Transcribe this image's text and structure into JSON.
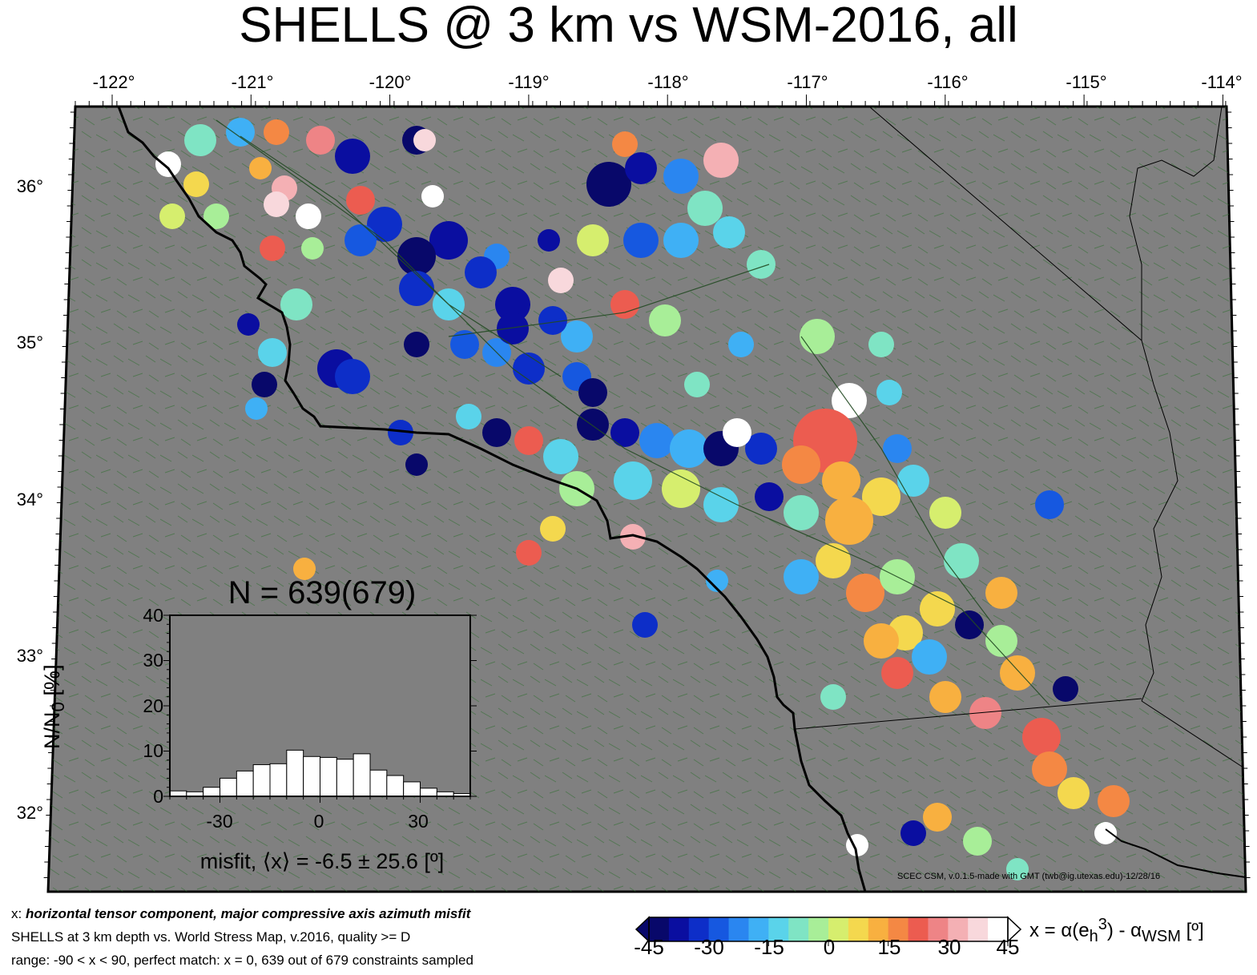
{
  "title": "SHELLS @ 3 km vs WSM-2016, all",
  "lon_labels": [
    "-122°",
    "-121°",
    "-120°",
    "-119°",
    "-118°",
    "-117°",
    "-116°",
    "-115°",
    "-114°"
  ],
  "lat_labels": [
    "36°",
    "35°",
    "34°",
    "33°",
    "32°"
  ],
  "credit": "SCEC CSM, v.0.1.5-made with GMT (twb@ig.utexas.edu)-12/28/16",
  "caption": {
    "line1_prefix": "x: ",
    "line1_emph": "horizontal tensor component, major compressive axis azimuth misfit",
    "line2": "SHELLS at 3 km depth vs.  World Stress Map, v.2016, quality >= D",
    "line3": "range: -90 < x < 90, perfect match: x = 0, 639 out of 679 constraints sampled"
  },
  "colorbar": {
    "labels": [
      "-45",
      "-30",
      "-15",
      "0",
      "15",
      "30",
      "45"
    ],
    "title": "x = α(e",
    "title_sup": "3",
    "title_sub": "h",
    "title_rest": ") - α",
    "title_sub2": "WSM",
    "title_unit": " [º]",
    "colors": [
      "#08086a",
      "#0a0ea0",
      "#0d2ec8",
      "#1658e0",
      "#2a86f0",
      "#3fb0f5",
      "#5ad3ea",
      "#7fe4c4",
      "#a8ee98",
      "#d6ee6e",
      "#f4d84e",
      "#f8b040",
      "#f48844",
      "#ec5c50",
      "#ee8486",
      "#f4b0b4",
      "#f8d8dc",
      "#ffffff"
    ]
  },
  "histogram": {
    "title": "N = 639(679)",
    "ylabel_main": "N/N",
    "ylabel_sub": "0",
    "ylabel_unit": " [%]",
    "xlabel": "misfit, ⟨x⟩ = -6.5 ± 25.6 [º]",
    "yticks": [
      "40",
      "30",
      "20",
      "10",
      "0"
    ],
    "xticks": [
      "-30",
      "0",
      "30"
    ],
    "chart_data": {
      "type": "bar",
      "xlabel": "misfit, ⟨x⟩ = -6.5 ± 25.6 [º]",
      "ylabel": "N/N0 [%]",
      "xlim": [
        -45,
        45
      ],
      "ylim": [
        0,
        40
      ],
      "bin_width": 5,
      "bin_left_edges": [
        -45,
        -40,
        -35,
        -30,
        -25,
        -20,
        -15,
        -10,
        -5,
        0,
        5,
        10,
        15,
        20,
        25,
        30,
        35,
        40
      ],
      "values": [
        1.2,
        1.0,
        2.0,
        4.0,
        5.6,
        7.0,
        7.2,
        10.2,
        8.8,
        8.6,
        8.2,
        9.4,
        5.8,
        4.6,
        3.2,
        1.8,
        1.0,
        0.6
      ]
    }
  }
}
